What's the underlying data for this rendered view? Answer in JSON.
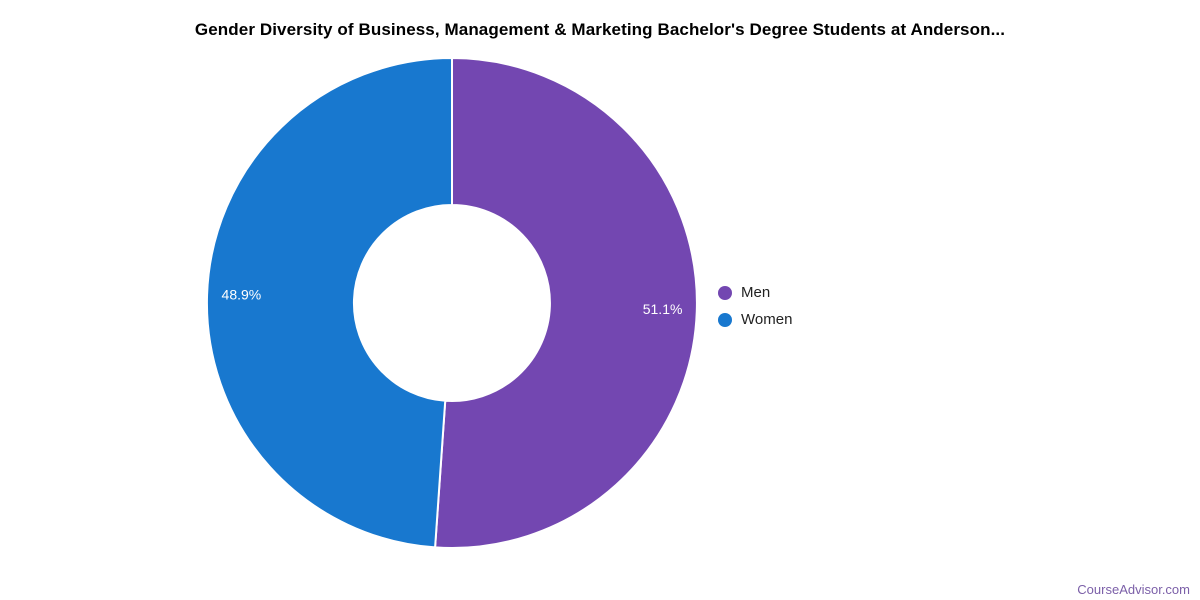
{
  "chart_data": {
    "type": "pie",
    "donut": true,
    "hole_ratio": 0.4,
    "start_angle_deg": 0,
    "direction": "clockwise",
    "title": "Gender Diversity of Business, Management & Marketing Bachelor's Degree Students at Anderson...",
    "slices": [
      {
        "label": "Men",
        "value": 51.1,
        "display": "51.1%",
        "color": "#7347B1"
      },
      {
        "label": "Women",
        "value": 48.9,
        "display": "48.9%",
        "color": "#1878CF"
      }
    ],
    "legend": {
      "position": "right",
      "entries": [
        "Men",
        "Women"
      ]
    },
    "slice_label_color": "#ffffff",
    "slice_border_color": "#ffffff"
  },
  "footer": {
    "watermark": "CourseAdvisor.com",
    "watermark_color": "#7B5FA8"
  }
}
